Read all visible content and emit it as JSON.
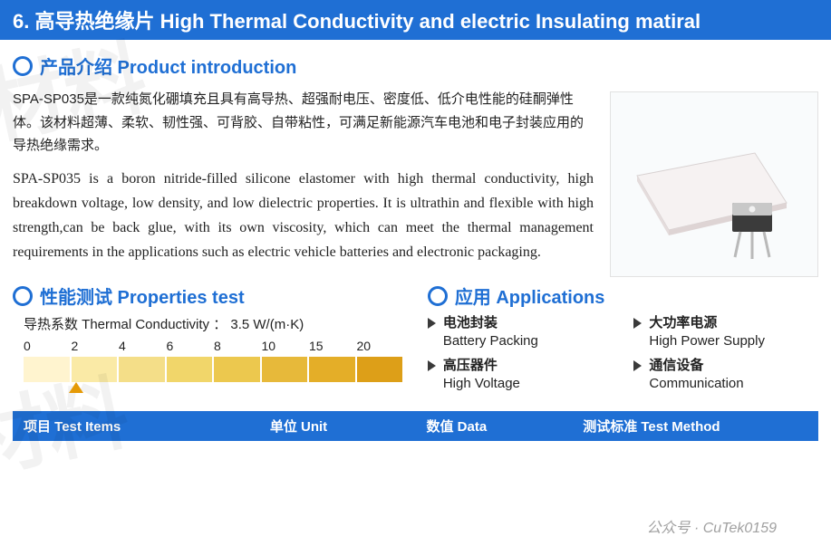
{
  "title_bar": "6. 高导热绝缘片 High Thermal Conductivity and electric Insulating matiral",
  "watermark_a": "材料",
  "watermark_b": "材料",
  "intro": {
    "heading": "产品介绍 Product introduction",
    "zh": "SPA-SP035是一款纯氮化硼填充且具有高导热、超强耐电压、密度低、低介电性能的硅酮弹性体。该材料超薄、柔软、韧性强、可背胶、自带粘性，可满足新能源汽车电池和电子封装应用的导热绝缘需求。",
    "en": "SPA-SP035 is a boron nitride-filled silicone elastomer with high thermal conductivity, high breakdown voltage, low density, and low dielectric properties. It is ultrathin and flexible with high strength,can be back glue, with its own viscosity, which can meet the thermal management requirements in the applications such as electric vehicle batteries and electronic packaging."
  },
  "props": {
    "heading": "性能测试 Properties test",
    "tc_label": "导热系数  Thermal Conductivity ： 3.5 W/(m·K)",
    "ticks": [
      "0",
      "2",
      "4",
      "6",
      "8",
      "10",
      "15",
      "20"
    ],
    "bar_colors": [
      "#fff4cf",
      "#faeaa6",
      "#f4de88",
      "#f1d66a",
      "#ecc84e",
      "#e7b93a",
      "#e4ae28",
      "#dd9f18"
    ],
    "gap_color": "#ffffff",
    "pointer_value": 3.5,
    "pointer_tick_min": 0,
    "pointer_tick_max": 20,
    "pointer_pct": 12,
    "pointer_color": "#e59a06"
  },
  "apps": {
    "heading": "应用 Applications",
    "items": [
      {
        "zh": "电池封装",
        "en": "Battery Packing"
      },
      {
        "zh": "大功率电源",
        "en": "High Power Supply"
      },
      {
        "zh": "高压器件",
        "en": "High Voltage"
      },
      {
        "zh": "通信设备",
        "en": "Communication"
      }
    ]
  },
  "table": {
    "headers": {
      "c1": "项目 Test  Items",
      "c2": "单位  Unit",
      "c3": "数值 Data",
      "c4": "测试标准 Test  Method"
    }
  },
  "footer_tag": "公众号 · CuTek0159",
  "colors": {
    "brand_blue": "#1f6fd4",
    "text": "#222222",
    "border": "#e2e2e2",
    "bg": "#ffffff"
  },
  "image": {
    "alt": "product-illustration-thermal-pad-and-transistor"
  }
}
